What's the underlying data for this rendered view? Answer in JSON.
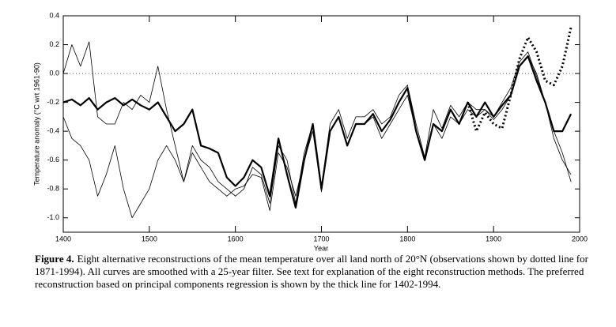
{
  "chart_data": {
    "type": "line",
    "xlabel": "Year",
    "ylabel": "Temperature anomaly (°C wrt 1961-90)",
    "xlim": [
      1400,
      2000
    ],
    "ylim": [
      -1.1,
      0.4
    ],
    "xticks": [
      1400,
      1500,
      1600,
      1700,
      1800,
      1900,
      2000
    ],
    "yticks": [
      0.4,
      0.2,
      {
        "value": 0,
        "label": "0.0"
      },
      -0.2,
      -0.4,
      -0.6,
      -0.8,
      {
        "value": -1,
        "label": "-1.0"
      }
    ],
    "x": [
      1400,
      1410,
      1420,
      1430,
      1440,
      1450,
      1460,
      1470,
      1480,
      1490,
      1500,
      1510,
      1520,
      1530,
      1540,
      1550,
      1560,
      1570,
      1580,
      1590,
      1600,
      1610,
      1620,
      1630,
      1640,
      1650,
      1660,
      1670,
      1680,
      1690,
      1700,
      1710,
      1720,
      1730,
      1740,
      1750,
      1760,
      1770,
      1780,
      1790,
      1800,
      1810,
      1820,
      1830,
      1840,
      1850,
      1860,
      1870,
      1880,
      1890,
      1900,
      1910,
      1920,
      1930,
      1940,
      1950,
      1960,
      1970,
      1980,
      1990
    ],
    "series": [
      {
        "color": "#000000",
        "line_width": 0.8,
        "dash": "none",
        "values": [
          -0.3,
          -0.45,
          -0.5,
          -0.6,
          -0.85,
          -0.7,
          -0.5,
          -0.8,
          -1.0,
          -0.9,
          -0.8,
          -0.6,
          -0.5,
          -0.6,
          -0.75,
          -0.55,
          -0.65,
          -0.75,
          -0.8,
          -0.85,
          -0.8,
          -0.78,
          -0.7,
          -0.72,
          -0.95,
          -0.55,
          -0.65,
          -0.85,
          -0.6,
          -0.4,
          -0.82,
          -0.4,
          -0.3,
          -0.5,
          -0.35,
          -0.35,
          -0.3,
          -0.45,
          -0.35,
          -0.25,
          -0.15,
          -0.4,
          -0.6,
          -0.35,
          -0.45,
          -0.3,
          -0.35,
          -0.25,
          -0.3,
          -0.25,
          -0.32,
          -0.25,
          -0.15,
          0.05,
          0.12,
          0.0,
          -0.2,
          -0.45,
          -0.6,
          -0.7
        ]
      },
      {
        "color": "#000000",
        "line_width": 0.8,
        "dash": "none",
        "values": [
          0.0,
          0.2,
          0.05,
          0.22,
          -0.3,
          -0.35,
          -0.35,
          -0.2,
          -0.25,
          -0.15,
          -0.2,
          0.05,
          -0.25,
          -0.5,
          -0.75,
          -0.5,
          -0.6,
          -0.65,
          -0.75,
          -0.8,
          -0.85,
          -0.8,
          -0.65,
          -0.7,
          -0.9,
          -0.5,
          -0.6,
          -0.9,
          -0.55,
          -0.35,
          -0.78,
          -0.35,
          -0.25,
          -0.45,
          -0.3,
          -0.3,
          -0.25,
          -0.35,
          -0.3,
          -0.15,
          -0.08,
          -0.35,
          -0.58,
          -0.25,
          -0.38,
          -0.22,
          -0.3,
          -0.2,
          -0.25,
          -0.25,
          -0.3,
          -0.2,
          -0.1,
          0.08,
          0.15,
          -0.02,
          -0.2,
          -0.4,
          -0.55,
          -0.75
        ]
      },
      {
        "color": "#000000",
        "line_width": 2.2,
        "dash": "none",
        "values": [
          -0.2,
          -0.18,
          -0.22,
          -0.17,
          -0.25,
          -0.2,
          -0.17,
          -0.22,
          -0.18,
          -0.22,
          -0.25,
          -0.2,
          -0.3,
          -0.4,
          -0.35,
          -0.25,
          -0.5,
          -0.52,
          -0.55,
          -0.72,
          -0.78,
          -0.72,
          -0.6,
          -0.65,
          -0.85,
          -0.45,
          -0.7,
          -0.93,
          -0.6,
          -0.35,
          -0.8,
          -0.4,
          -0.3,
          -0.5,
          -0.35,
          -0.35,
          -0.28,
          -0.4,
          -0.32,
          -0.2,
          -0.1,
          -0.4,
          -0.6,
          -0.35,
          -0.4,
          -0.25,
          -0.35,
          -0.2,
          -0.3,
          -0.2,
          -0.3,
          -0.22,
          -0.15,
          0.05,
          0.12,
          -0.05,
          -0.2,
          -0.4,
          -0.4,
          -0.28
        ]
      },
      {
        "color": "#000000",
        "line_width": 3,
        "dash": "2 3",
        "x": [
          1870,
          1880,
          1890,
          1900,
          1910,
          1920,
          1930,
          1940,
          1950,
          1960,
          1970,
          1980,
          1990
        ],
        "values": [
          -0.2,
          -0.4,
          -0.27,
          -0.35,
          -0.38,
          -0.15,
          0.1,
          0.25,
          0.15,
          -0.05,
          -0.08,
          0.05,
          0.32
        ]
      }
    ]
  },
  "caption": {
    "label": "Figure 4.",
    "text": "Eight alternative reconstructions of the mean temperature over all land north of 20°N (observations shown by dotted line for 1871-1994). All curves are smoothed with a 25-year filter. See text for explanation of the eight reconstruction methods. The preferred reconstruction based on principal components regression is shown by the thick line for 1402-1994."
  }
}
